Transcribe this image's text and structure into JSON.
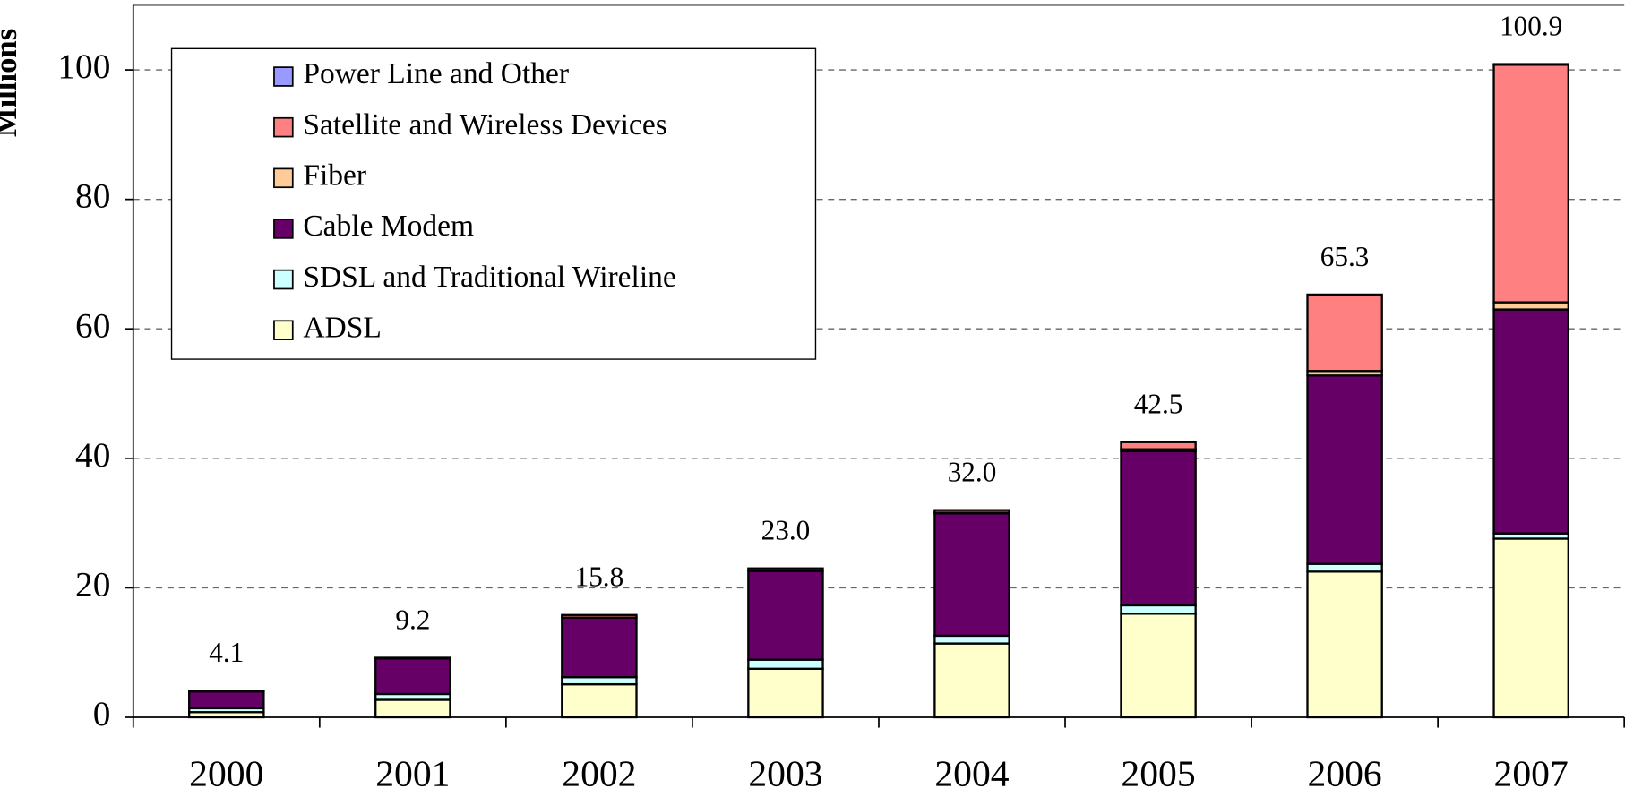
{
  "chart_data": {
    "type": "stacked_bar",
    "y_label": "Millions",
    "categories": [
      "2000",
      "2001",
      "2002",
      "2003",
      "2004",
      "2005",
      "2006",
      "2007"
    ],
    "series": [
      {
        "name": "ADSL",
        "color": "#ffffcc",
        "values": [
          0.8,
          2.7,
          5.1,
          7.5,
          11.4,
          16.0,
          22.5,
          27.6
        ]
      },
      {
        "name": "SDSL and Traditional Wireline",
        "color": "#ccffff",
        "values": [
          0.6,
          0.9,
          1.1,
          1.4,
          1.2,
          1.3,
          1.2,
          0.8
        ]
      },
      {
        "name": "Cable Modem",
        "color": "#660066",
        "values": [
          2.6,
          5.5,
          9.2,
          13.7,
          18.9,
          23.8,
          29.1,
          34.6
        ]
      },
      {
        "name": "Fiber",
        "color": "#ffcc99",
        "values": [
          0,
          0,
          0,
          0,
          0.1,
          0.3,
          0.7,
          1.1
        ]
      },
      {
        "name": "Satellite and Wireless Devices",
        "color": "#ff8080",
        "values": [
          0.1,
          0.1,
          0.4,
          0.4,
          0.4,
          1.1,
          11.8,
          36.7
        ]
      },
      {
        "name": "Power Line and Other",
        "color": "#9999ff",
        "values": [
          0,
          0,
          0,
          0,
          0,
          0,
          0,
          0.1
        ]
      }
    ],
    "totals": [
      4.1,
      9.2,
      15.8,
      23.0,
      32.0,
      42.5,
      65.3,
      100.9
    ],
    "total_labels": [
      "4.1",
      "9.2",
      "15.8",
      "23.0",
      "32.0",
      "42.5",
      "65.3",
      "100.9"
    ],
    "ylim": [
      0,
      110
    ],
    "yticks": [
      0,
      20,
      40,
      60,
      80,
      100
    ],
    "grid": true
  }
}
